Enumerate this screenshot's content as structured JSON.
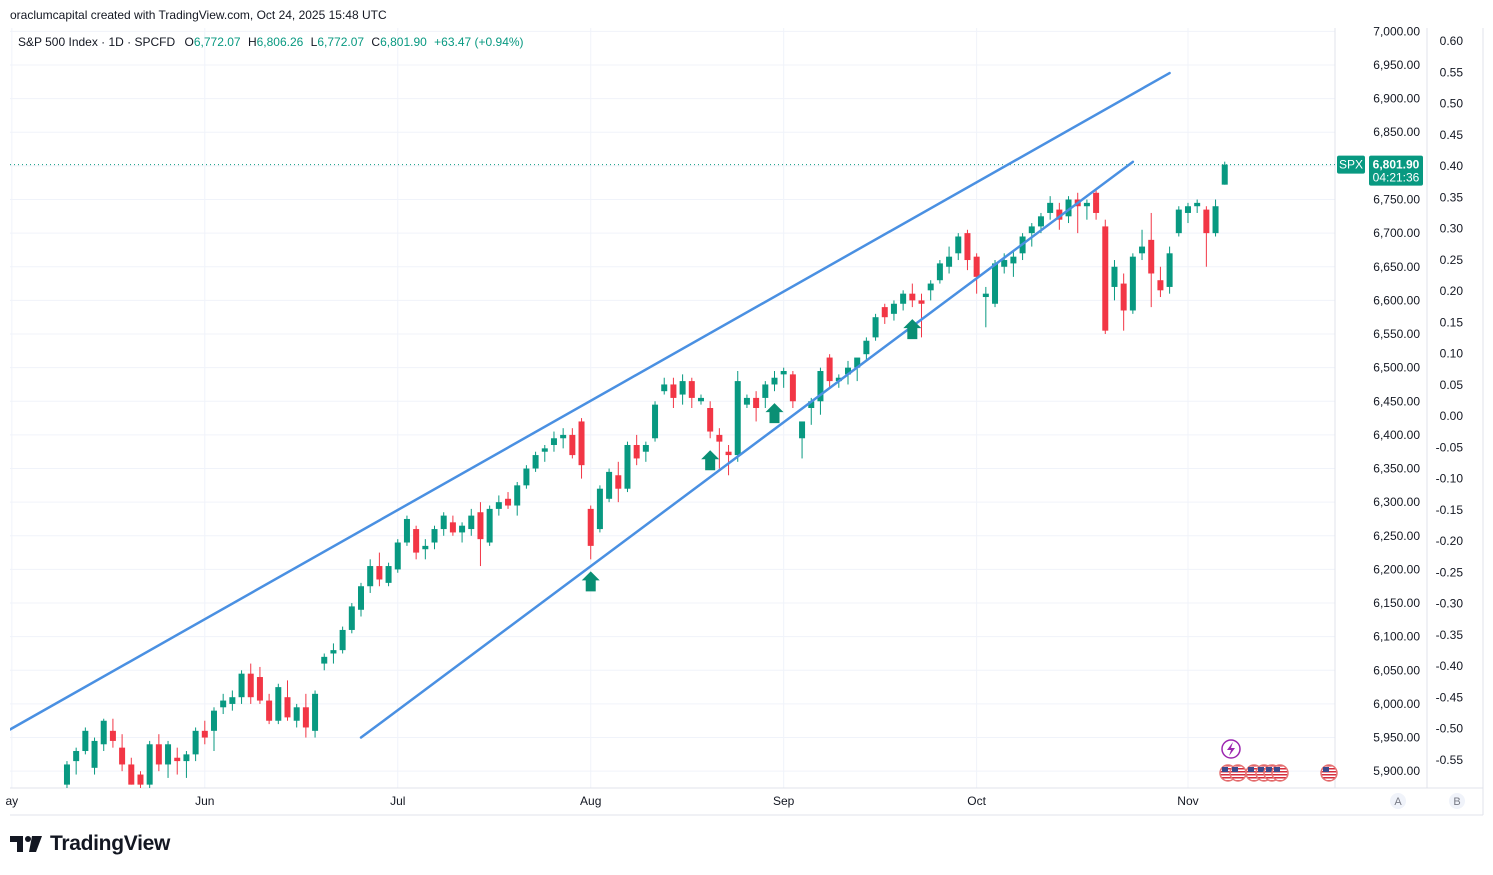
{
  "credit": "oraclumcapital created with TradingView.com, Oct 24, 2025 15:48 UTC",
  "logo_text": "TradingView",
  "colors": {
    "up": "#089981",
    "down": "#f23645",
    "channel": "#4a90e2",
    "grid": "#f0f3fa",
    "badge": "#089981"
  },
  "chart_data": {
    "type": "candlestick",
    "symbol_line": {
      "name": "S&P 500 Index · 1D · SPCFD",
      "o_label": "O",
      "o_value": "6,772.07",
      "h_label": "H",
      "h_value": "6,806.26",
      "l_label": "L",
      "l_value": "6,772.07",
      "c_label": "C",
      "c_value": "6,801.90",
      "change": "+63.47 (+0.94%)"
    },
    "y_axis_left_ticks": [
      "7,000.00",
      "6,950.00",
      "6,900.00",
      "6,850.00",
      "6,800.00",
      "6,750.00",
      "6,700.00",
      "6,650.00",
      "6,600.00",
      "6,550.00",
      "6,500.00",
      "6,450.00",
      "6,400.00",
      "6,350.00",
      "6,300.00",
      "6,250.00",
      "6,200.00",
      "6,150.00",
      "6,100.00",
      "6,050.00",
      "6,000.00",
      "5,950.00",
      "5,900.00"
    ],
    "y_axis_right_ticks": [
      "0.60",
      "0.55",
      "0.50",
      "0.45",
      "0.40",
      "0.35",
      "0.30",
      "0.25",
      "0.20",
      "0.15",
      "0.10",
      "0.05",
      "0.00",
      "-0.05",
      "-0.10",
      "-0.15",
      "-0.20",
      "-0.25",
      "-0.30",
      "-0.35",
      "-0.40",
      "-0.45",
      "-0.50",
      "-0.55"
    ],
    "ylim": [
      5875,
      7005
    ],
    "x_ticks": [
      {
        "label": "ay",
        "index": -6
      },
      {
        "label": "Jun",
        "index": 15
      },
      {
        "label": "Jul",
        "index": 36
      },
      {
        "label": "Aug",
        "index": 57
      },
      {
        "label": "Sep",
        "index": 78
      },
      {
        "label": "Oct",
        "index": 99
      },
      {
        "label": "Nov",
        "index": 122
      }
    ],
    "x_domain": [
      -6.2,
      138
    ],
    "price_badge": {
      "symbol": "SPX",
      "price": "6,801.90",
      "countdown": "04:21:36",
      "value": 6801.9
    },
    "candles": [
      [
        5880,
        5915,
        5875,
        5910
      ],
      [
        5915,
        5935,
        5895,
        5930
      ],
      [
        5930,
        5965,
        5925,
        5960
      ],
      [
        5905,
        5950,
        5895,
        5945
      ],
      [
        5940,
        5978,
        5930,
        5975
      ],
      [
        5960,
        5978,
        5935,
        5945
      ],
      [
        5935,
        5955,
        5900,
        5910
      ],
      [
        5910,
        5920,
        5880,
        5880
      ],
      [
        5895,
        5900,
        5875,
        5880
      ],
      [
        5880,
        5945,
        5875,
        5940
      ],
      [
        5940,
        5955,
        5900,
        5910
      ],
      [
        5910,
        5945,
        5890,
        5940
      ],
      [
        5920,
        5935,
        5895,
        5915
      ],
      [
        5915,
        5930,
        5890,
        5925
      ],
      [
        5925,
        5965,
        5915,
        5960
      ],
      [
        5960,
        5975,
        5940,
        5950
      ],
      [
        5960,
        5995,
        5930,
        5990
      ],
      [
        5995,
        6015,
        5985,
        6005
      ],
      [
        6000,
        6020,
        5990,
        6010
      ],
      [
        6010,
        6050,
        6000,
        6045
      ],
      [
        6045,
        6060,
        6000,
        6010
      ],
      [
        6040,
        6055,
        6000,
        6005
      ],
      [
        6005,
        6015,
        5970,
        5975
      ],
      [
        5975,
        6030,
        5970,
        6025
      ],
      [
        6010,
        6035,
        5975,
        5980
      ],
      [
        5975,
        6000,
        5965,
        5995
      ],
      [
        5995,
        6015,
        5950,
        5965
      ],
      [
        5960,
        6020,
        5950,
        6015
      ],
      [
        6060,
        6075,
        6050,
        6070
      ],
      [
        6075,
        6090,
        6060,
        6080
      ],
      [
        6080,
        6115,
        6075,
        6110
      ],
      [
        6110,
        6150,
        6105,
        6145
      ],
      [
        6140,
        6180,
        6130,
        6175
      ],
      [
        6175,
        6215,
        6165,
        6205
      ],
      [
        6205,
        6225,
        6175,
        6185
      ],
      [
        6180,
        6210,
        6175,
        6205
      ],
      [
        6200,
        6245,
        6195,
        6240
      ],
      [
        6240,
        6280,
        6235,
        6275
      ],
      [
        6260,
        6265,
        6215,
        6225
      ],
      [
        6230,
        6245,
        6215,
        6235
      ],
      [
        6240,
        6265,
        6230,
        6260
      ],
      [
        6260,
        6285,
        6250,
        6280
      ],
      [
        6270,
        6280,
        6250,
        6255
      ],
      [
        6255,
        6270,
        6240,
        6265
      ],
      [
        6260,
        6290,
        6250,
        6280
      ],
      [
        6285,
        6300,
        6205,
        6245
      ],
      [
        6240,
        6295,
        6235,
        6290
      ],
      [
        6290,
        6310,
        6280,
        6300
      ],
      [
        6305,
        6315,
        6290,
        6295
      ],
      [
        6295,
        6330,
        6280,
        6325
      ],
      [
        6325,
        6355,
        6320,
        6350
      ],
      [
        6350,
        6375,
        6345,
        6370
      ],
      [
        6375,
        6385,
        6360,
        6380
      ],
      [
        6385,
        6405,
        6375,
        6395
      ],
      [
        6395,
        6410,
        6380,
        6400
      ],
      [
        6400,
        6410,
        6365,
        6370
      ],
      [
        6420,
        6425,
        6335,
        6355
      ],
      [
        6290,
        6295,
        6215,
        6235
      ],
      [
        6260,
        6325,
        6255,
        6320
      ],
      [
        6305,
        6350,
        6300,
        6345
      ],
      [
        6340,
        6360,
        6300,
        6320
      ],
      [
        6320,
        6390,
        6315,
        6385
      ],
      [
        6385,
        6400,
        6355,
        6365
      ],
      [
        6375,
        6390,
        6360,
        6385
      ],
      [
        6395,
        6450,
        6390,
        6445
      ],
      [
        6465,
        6485,
        6460,
        6475
      ],
      [
        6475,
        6485,
        6440,
        6455
      ],
      [
        6460,
        6490,
        6445,
        6480
      ],
      [
        6480,
        6485,
        6440,
        6455
      ],
      [
        6450,
        6460,
        6445,
        6455
      ],
      [
        6440,
        6450,
        6395,
        6405
      ],
      [
        6400,
        6410,
        6350,
        6390
      ],
      [
        6375,
        6385,
        6340,
        6370
      ],
      [
        6370,
        6495,
        6360,
        6480
      ],
      [
        6445,
        6460,
        6440,
        6455
      ],
      [
        6455,
        6465,
        6420,
        6440
      ],
      [
        6455,
        6480,
        6440,
        6475
      ],
      [
        6475,
        6495,
        6465,
        6485
      ],
      [
        6490,
        6500,
        6470,
        6495
      ],
      [
        6490,
        6495,
        6440,
        6450
      ],
      [
        6395,
        6410,
        6365,
        6420
      ],
      [
        6440,
        6455,
        6415,
        6450
      ],
      [
        6450,
        6500,
        6430,
        6495
      ],
      [
        6515,
        6520,
        6470,
        6480
      ],
      [
        6480,
        6490,
        6470,
        6485
      ],
      [
        6490,
        6510,
        6475,
        6500
      ],
      [
        6500,
        6510,
        6480,
        6515
      ],
      [
        6520,
        6545,
        6510,
        6540
      ],
      [
        6545,
        6580,
        6540,
        6575
      ],
      [
        6590,
        6595,
        6565,
        6575
      ],
      [
        6580,
        6600,
        6570,
        6595
      ],
      [
        6595,
        6615,
        6585,
        6610
      ],
      [
        6610,
        6625,
        6590,
        6600
      ],
      [
        6600,
        6610,
        6545,
        6595
      ],
      [
        6615,
        6630,
        6600,
        6625
      ],
      [
        6630,
        6660,
        6625,
        6655
      ],
      [
        6650,
        6680,
        6640,
        6665
      ],
      [
        6670,
        6700,
        6660,
        6695
      ],
      [
        6700,
        6705,
        6645,
        6660
      ],
      [
        6665,
        6670,
        6610,
        6635
      ],
      [
        6605,
        6620,
        6560,
        6610
      ],
      [
        6595,
        6660,
        6590,
        6655
      ],
      [
        6650,
        6670,
        6640,
        6660
      ],
      [
        6655,
        6675,
        6635,
        6665
      ],
      [
        6670,
        6700,
        6660,
        6695
      ],
      [
        6700,
        6715,
        6680,
        6710
      ],
      [
        6710,
        6730,
        6700,
        6725
      ],
      [
        6730,
        6755,
        6720,
        6745
      ],
      [
        6735,
        6745,
        6705,
        6720
      ],
      [
        6725,
        6755,
        6715,
        6750
      ],
      [
        6750,
        6760,
        6700,
        6740
      ],
      [
        6740,
        6750,
        6720,
        6745
      ],
      [
        6760,
        6765,
        6720,
        6730
      ],
      [
        6710,
        6720,
        6550,
        6555
      ],
      [
        6620,
        6660,
        6600,
        6650
      ],
      [
        6625,
        6640,
        6555,
        6585
      ],
      [
        6585,
        6670,
        6580,
        6665
      ],
      [
        6670,
        6705,
        6660,
        6680
      ],
      [
        6690,
        6730,
        6590,
        6640
      ],
      [
        6630,
        6650,
        6605,
        6615
      ],
      [
        6620,
        6680,
        6610,
        6670
      ],
      [
        6700,
        6740,
        6695,
        6735
      ],
      [
        6730,
        6745,
        6715,
        6740
      ],
      [
        6740,
        6750,
        6730,
        6745
      ],
      [
        6735,
        6740,
        6650,
        6700
      ],
      [
        6700,
        6750,
        6695,
        6740
      ],
      [
        6772.07,
        6806.26,
        6772.07,
        6801.9
      ]
    ],
    "arrows_at_index": [
      57,
      70,
      77,
      92
    ],
    "annotations": [
      {
        "type": "upper_channel_line",
        "from": [
          -6.2,
          5962
        ],
        "to": [
          120,
          6938
        ]
      },
      {
        "type": "lower_channel_line",
        "from": [
          32,
          5950
        ],
        "to": [
          116,
          6806
        ]
      }
    ],
    "event_markers": [
      "lightning-event-icon",
      "us-flag-icons"
    ],
    "bottom_buttons": [
      "A",
      "B"
    ]
  }
}
